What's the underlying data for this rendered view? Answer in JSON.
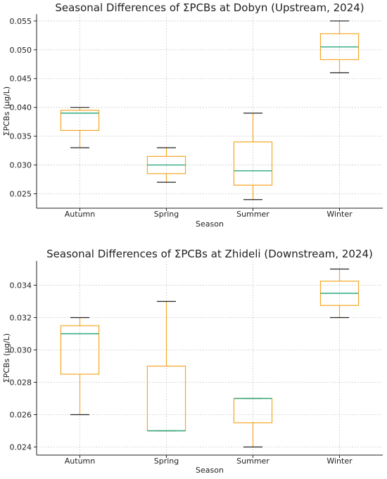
{
  "chart_data": [
    {
      "type": "box",
      "title": "Seasonal Differences of ΣPCBs at Dobyn (Upstream, 2024)",
      "xlabel": "Season",
      "ylabel": "ΣPCBs (μg/L)",
      "categories": [
        "Autumn",
        "Spring",
        "Summer",
        "Winter"
      ],
      "ylim": [
        0.0225,
        0.0562
      ],
      "yticks": [
        0.025,
        0.03,
        0.035,
        0.04,
        0.045,
        0.05,
        0.055
      ],
      "ytick_labels": [
        "0.025",
        "0.030",
        "0.035",
        "0.040",
        "0.045",
        "0.050",
        "0.055"
      ],
      "grid": true,
      "boxes": [
        {
          "category": "Autumn",
          "min": 0.033,
          "q1": 0.036,
          "median": 0.039,
          "q3": 0.0395,
          "max": 0.04
        },
        {
          "category": "Spring",
          "min": 0.027,
          "q1": 0.0285,
          "median": 0.03,
          "q3": 0.0315,
          "max": 0.033
        },
        {
          "category": "Summer",
          "min": 0.024,
          "q1": 0.0265,
          "median": 0.029,
          "q3": 0.034,
          "max": 0.039
        },
        {
          "category": "Winter",
          "min": 0.046,
          "q1": 0.0483,
          "median": 0.0505,
          "q3": 0.0528,
          "max": 0.055
        }
      ]
    },
    {
      "type": "box",
      "title": "Seasonal Differences of ΣPCBs at Zhideli (Downstream, 2024)",
      "xlabel": "Season",
      "ylabel": "ΣPCBs (μg/L)",
      "categories": [
        "Autumn",
        "Spring",
        "Summer",
        "Winter"
      ],
      "ylim": [
        0.0235,
        0.0355
      ],
      "yticks": [
        0.024,
        0.026,
        0.028,
        0.03,
        0.032,
        0.034
      ],
      "ytick_labels": [
        "0.024",
        "0.026",
        "0.028",
        "0.030",
        "0.032",
        "0.034"
      ],
      "grid": true,
      "boxes": [
        {
          "category": "Autumn",
          "min": 0.026,
          "q1": 0.0285,
          "median": 0.031,
          "q3": 0.0315,
          "max": 0.032
        },
        {
          "category": "Spring",
          "min": 0.025,
          "q1": 0.025,
          "median": 0.025,
          "q3": 0.029,
          "max": 0.033
        },
        {
          "category": "Summer",
          "min": 0.024,
          "q1": 0.0255,
          "median": 0.027,
          "q3": 0.027,
          "max": 0.027
        },
        {
          "category": "Winter",
          "min": 0.032,
          "q1": 0.03275,
          "median": 0.0335,
          "q3": 0.03425,
          "max": 0.035
        }
      ]
    }
  ],
  "colors": {
    "box": "#f5a623",
    "median": "#2ca87f",
    "whisker_cap": "#222222",
    "grid": "#cccccc",
    "axis": "#222222"
  }
}
